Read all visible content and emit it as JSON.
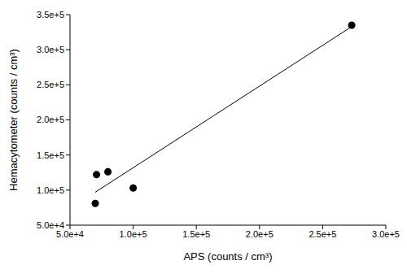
{
  "chart_data": {
    "type": "scatter",
    "x_label": "APS (counts / cm³)",
    "y_label": "Hemacytometer (counts / cm³)",
    "xlim": [
      50000,
      300000
    ],
    "ylim": [
      50000,
      350000
    ],
    "xticks": [
      {
        "value": 50000,
        "label": "5.0e+4"
      },
      {
        "value": 100000,
        "label": "1.0e+5"
      },
      {
        "value": 150000,
        "label": "1.5e+5"
      },
      {
        "value": 200000,
        "label": "2.0e+5"
      },
      {
        "value": 250000,
        "label": "2.5e+5"
      },
      {
        "value": 300000,
        "label": "3.0e+5"
      }
    ],
    "yticks": [
      {
        "value": 50000,
        "label": "5.0e+4"
      },
      {
        "value": 100000,
        "label": "1.0e+5"
      },
      {
        "value": 150000,
        "label": "1.5e+5"
      },
      {
        "value": 200000,
        "label": "2.0e+5"
      },
      {
        "value": 250000,
        "label": "2.5e+5"
      },
      {
        "value": 300000,
        "label": "3.0e+5"
      },
      {
        "value": 350000,
        "label": "3.5e+5"
      }
    ],
    "grid": false,
    "series": [
      {
        "type": "scatter",
        "marker": "circle",
        "color": "#000000",
        "x": [
          70000,
          71000,
          80000,
          100000,
          273000
        ],
        "values": [
          81000,
          122000,
          126000,
          103000,
          335000
        ]
      },
      {
        "type": "line",
        "line_style": "solid",
        "color": "#000000",
        "x": [
          70000,
          273000
        ],
        "values": [
          97000,
          333000
        ]
      }
    ]
  }
}
